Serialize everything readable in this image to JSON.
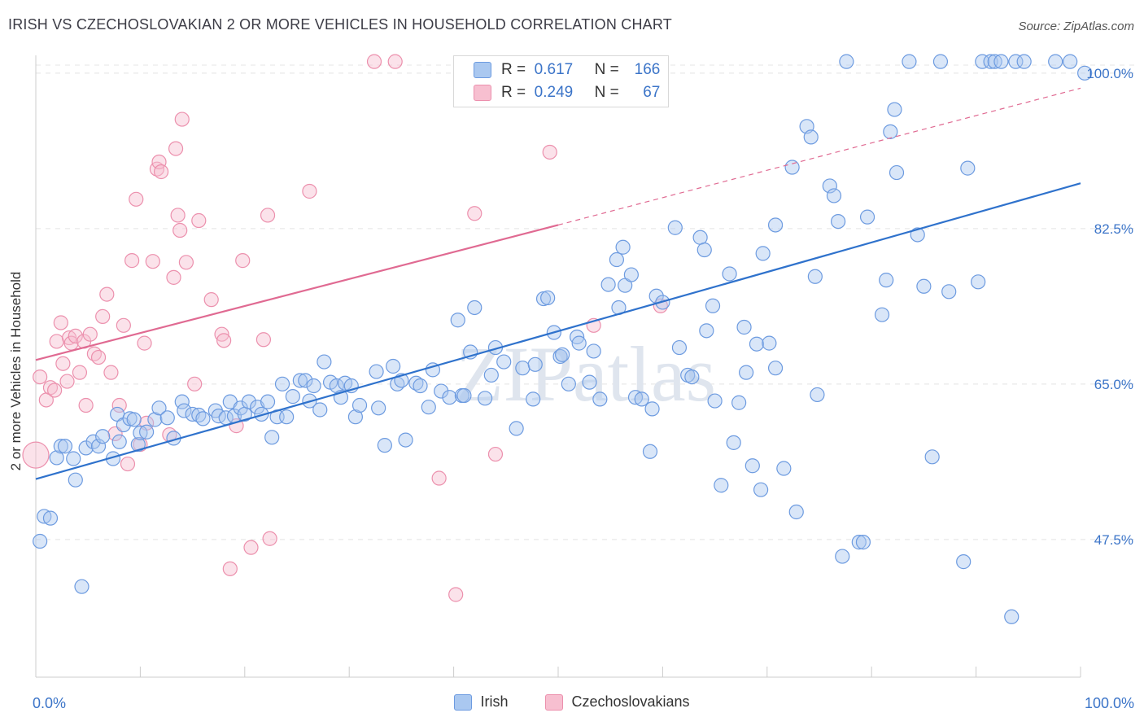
{
  "title": "IRISH VS CZECHOSLOVAKIAN 2 OR MORE VEHICLES IN HOUSEHOLD CORRELATION CHART",
  "source": "Source: ZipAtlas.com",
  "watermark": "ZIPatlas",
  "legend_top": {
    "irish": {
      "r_label": "R =",
      "r_value": "0.617",
      "n_label": "N =",
      "n_value": "166"
    },
    "czech": {
      "r_label": "R =",
      "r_value": "0.249",
      "n_label": "N =",
      "n_value": "67"
    }
  },
  "colors": {
    "irish_fill": "#aac8f0",
    "irish_stroke": "#6d9be0",
    "irish_line": "#2f72cc",
    "czech_fill": "#f7bfd0",
    "czech_stroke": "#ec90ad",
    "czech_line": "#e06a92",
    "tick_label": "#3b74c8",
    "grid": "#e4e4e4"
  },
  "chart_data": {
    "type": "scatter",
    "xlabel": "",
    "ylabel": "2 or more Vehicles in Household",
    "xlim": [
      0,
      100
    ],
    "ylim": [
      32,
      102
    ],
    "x_tick_labels": [
      {
        "value": 0,
        "label": "0.0%"
      },
      {
        "value": 100,
        "label": "100.0%"
      }
    ],
    "y_ticks": [
      {
        "value": 47.5,
        "label": "47.5%"
      },
      {
        "value": 65.0,
        "label": "65.0%"
      },
      {
        "value": 82.5,
        "label": "82.5%"
      },
      {
        "value": 100.0,
        "label": "100.0%"
      }
    ],
    "grid": true,
    "legend_position": "top-center",
    "series": [
      {
        "name": "Irish",
        "points": [
          [
            0.4,
            47.3
          ],
          [
            0.8,
            50.1
          ],
          [
            1.4,
            49.9
          ],
          [
            2,
            56.7
          ],
          [
            2.4,
            58
          ],
          [
            2.8,
            58
          ],
          [
            3.6,
            56.6
          ],
          [
            3.8,
            54.2
          ],
          [
            4.4,
            42.2
          ],
          [
            4.8,
            57.8
          ],
          [
            5.5,
            58.5
          ],
          [
            6,
            58
          ],
          [
            6.4,
            59.1
          ],
          [
            7.4,
            56.6
          ],
          [
            7.8,
            61.6
          ],
          [
            8,
            58.5
          ],
          [
            8.4,
            60.4
          ],
          [
            9,
            61.1
          ],
          [
            9.4,
            61
          ],
          [
            9.8,
            58.2
          ],
          [
            10,
            59.5
          ],
          [
            10.6,
            59.6
          ],
          [
            11.4,
            61
          ],
          [
            11.8,
            62.3
          ],
          [
            12.6,
            61.2
          ],
          [
            13.2,
            58.9
          ],
          [
            14,
            63
          ],
          [
            14.2,
            62
          ],
          [
            15,
            61.6
          ],
          [
            15.6,
            61.5
          ],
          [
            16,
            61.1
          ],
          [
            17.2,
            62
          ],
          [
            17.5,
            61.4
          ],
          [
            18.2,
            61.2
          ],
          [
            18.6,
            63
          ],
          [
            19,
            61.4
          ],
          [
            19.6,
            62.3
          ],
          [
            20,
            61.6
          ],
          [
            20.4,
            63
          ],
          [
            21.2,
            62.4
          ],
          [
            21.6,
            61.6
          ],
          [
            22.2,
            63
          ],
          [
            22.6,
            59
          ],
          [
            23.1,
            61.3
          ],
          [
            23.6,
            65
          ],
          [
            24,
            61.3
          ],
          [
            24.6,
            63.6
          ],
          [
            25.3,
            65.4
          ],
          [
            25.8,
            65.4
          ],
          [
            26.2,
            63.1
          ],
          [
            26.6,
            64.8
          ],
          [
            27.2,
            62.1
          ],
          [
            27.6,
            67.5
          ],
          [
            28.2,
            65.2
          ],
          [
            28.8,
            64.8
          ],
          [
            29.2,
            63.5
          ],
          [
            29.6,
            65.1
          ],
          [
            30.2,
            64.8
          ],
          [
            30.6,
            61.3
          ],
          [
            31,
            62.6
          ],
          [
            32.6,
            66.4
          ],
          [
            32.8,
            62.3
          ],
          [
            33.4,
            58.1
          ],
          [
            34.2,
            67
          ],
          [
            34.6,
            65
          ],
          [
            35,
            65.4
          ],
          [
            35.4,
            58.7
          ],
          [
            36.4,
            65.1
          ],
          [
            36.8,
            64.8
          ],
          [
            37.6,
            62.4
          ],
          [
            38,
            66.6
          ],
          [
            38.8,
            64.2
          ],
          [
            39.6,
            63.5
          ],
          [
            40.4,
            72.2
          ],
          [
            40.8,
            63.7
          ],
          [
            41,
            63.7
          ],
          [
            41.6,
            68.6
          ],
          [
            42,
            73.6
          ],
          [
            43,
            63.4
          ],
          [
            43.6,
            66
          ],
          [
            44,
            69.1
          ],
          [
            44.8,
            67.5
          ],
          [
            46,
            60
          ],
          [
            46.6,
            66.8
          ],
          [
            47.6,
            63.3
          ],
          [
            47.8,
            67.2
          ],
          [
            48.6,
            74.6
          ],
          [
            49,
            74.7
          ],
          [
            49.6,
            70.8
          ],
          [
            50.2,
            68.1
          ],
          [
            50.4,
            68.3
          ],
          [
            51,
            65
          ],
          [
            51.8,
            70.3
          ],
          [
            52,
            69.6
          ],
          [
            53,
            65.2
          ],
          [
            53.4,
            68.7
          ],
          [
            54,
            63.3
          ],
          [
            54.8,
            76.2
          ],
          [
            55.6,
            79
          ],
          [
            55.8,
            73.6
          ],
          [
            56.2,
            80.4
          ],
          [
            56.4,
            76.1
          ],
          [
            57,
            77.3
          ],
          [
            57.4,
            63.5
          ],
          [
            58,
            63.3
          ],
          [
            58.8,
            57.4
          ],
          [
            59,
            62.2
          ],
          [
            59.4,
            74.9
          ],
          [
            60,
            74.2
          ],
          [
            61.2,
            82.6
          ],
          [
            61.6,
            69.1
          ],
          [
            62.4,
            66
          ],
          [
            62.8,
            65.8
          ],
          [
            63.6,
            81.5
          ],
          [
            64,
            80.1
          ],
          [
            64.2,
            71
          ],
          [
            64.8,
            73.8
          ],
          [
            65,
            63.1
          ],
          [
            65.6,
            53.6
          ],
          [
            66.4,
            77.4
          ],
          [
            66.8,
            58.4
          ],
          [
            67.3,
            62.9
          ],
          [
            67.8,
            71.4
          ],
          [
            68,
            66.3
          ],
          [
            68.6,
            55.8
          ],
          [
            69,
            69.5
          ],
          [
            69.4,
            53.1
          ],
          [
            69.6,
            79.7
          ],
          [
            70.2,
            69.6
          ],
          [
            70.8,
            82.9
          ],
          [
            70.8,
            66.8
          ],
          [
            71.6,
            55.5
          ],
          [
            72.4,
            89.4
          ],
          [
            72.8,
            50.6
          ],
          [
            73.8,
            94
          ],
          [
            74.2,
            92.8
          ],
          [
            74.6,
            77.1
          ],
          [
            74.8,
            63.8
          ],
          [
            76,
            87.3
          ],
          [
            76.4,
            86.2
          ],
          [
            76.8,
            83.3
          ],
          [
            77.2,
            45.6
          ],
          [
            77.6,
            101.3
          ],
          [
            78.8,
            47.2
          ],
          [
            79.2,
            47.2
          ],
          [
            79.6,
            83.8
          ],
          [
            81,
            72.8
          ],
          [
            81.4,
            76.7
          ],
          [
            81.8,
            93.4
          ],
          [
            82.2,
            95.9
          ],
          [
            82.4,
            88.8
          ],
          [
            83.6,
            101.3
          ],
          [
            84.4,
            81.8
          ],
          [
            85,
            76
          ],
          [
            85.8,
            56.8
          ],
          [
            86.6,
            101.3
          ],
          [
            87.4,
            75.4
          ],
          [
            88.8,
            45
          ],
          [
            89.2,
            89.3
          ],
          [
            90.2,
            76.5
          ],
          [
            90.6,
            101.3
          ],
          [
            91.4,
            101.3
          ],
          [
            91.8,
            101.3
          ],
          [
            92.4,
            101.3
          ],
          [
            93.4,
            38.8
          ],
          [
            93.8,
            101.3
          ],
          [
            94.6,
            101.3
          ],
          [
            97.6,
            101.3
          ],
          [
            99,
            101.3
          ],
          [
            100.4,
            100
          ]
        ]
      },
      {
        "name": "Czechoslovakians",
        "points": [
          [
            0.4,
            65.8
          ],
          [
            1,
            63.2
          ],
          [
            1.4,
            64.6
          ],
          [
            1.8,
            64.3
          ],
          [
            2,
            69.8
          ],
          [
            2.4,
            71.9
          ],
          [
            2.6,
            67.3
          ],
          [
            3,
            65.3
          ],
          [
            3.2,
            70.2
          ],
          [
            3.4,
            69.6
          ],
          [
            3.8,
            70.4
          ],
          [
            4.2,
            66.3
          ],
          [
            4.6,
            69.8
          ],
          [
            4.8,
            62.6
          ],
          [
            5.2,
            70.6
          ],
          [
            5.6,
            68.4
          ],
          [
            6,
            68
          ],
          [
            6.4,
            72.6
          ],
          [
            6.8,
            75.1
          ],
          [
            7.2,
            66.3
          ],
          [
            7.6,
            59.4
          ],
          [
            8,
            62.6
          ],
          [
            8.4,
            71.6
          ],
          [
            8.8,
            56
          ],
          [
            9.2,
            78.9
          ],
          [
            9.6,
            85.8
          ],
          [
            10,
            58.2
          ],
          [
            10.4,
            69.6
          ],
          [
            10.6,
            60.6
          ],
          [
            11.2,
            78.8
          ],
          [
            11.6,
            89.2
          ],
          [
            11.8,
            90
          ],
          [
            12,
            88.9
          ],
          [
            12.8,
            59.3
          ],
          [
            13.2,
            77
          ],
          [
            13.4,
            91.5
          ],
          [
            13.6,
            84
          ],
          [
            13.8,
            82.3
          ],
          [
            14,
            94.8
          ],
          [
            14.4,
            78.7
          ],
          [
            15.2,
            65
          ],
          [
            15.6,
            83.4
          ],
          [
            16.8,
            74.5
          ],
          [
            17.8,
            70.6
          ],
          [
            18,
            69.9
          ],
          [
            18.6,
            44.2
          ],
          [
            19.2,
            60.3
          ],
          [
            19.8,
            78.9
          ],
          [
            20.6,
            46.6
          ],
          [
            21.8,
            70
          ],
          [
            22.2,
            84
          ],
          [
            22.4,
            47.6
          ],
          [
            26.2,
            86.7
          ],
          [
            32.4,
            101.3
          ],
          [
            34.4,
            101.3
          ],
          [
            38.6,
            54.4
          ],
          [
            40.2,
            41.3
          ],
          [
            42,
            84.2
          ],
          [
            44,
            57.1
          ],
          [
            49.2,
            91.1
          ],
          [
            53.4,
            71.6
          ],
          [
            59.8,
            73.8
          ]
        ]
      }
    ],
    "trend_lines": [
      {
        "series": "Irish",
        "x": [
          0,
          100
        ],
        "y": [
          54.3,
          87.6
        ],
        "style": "solid"
      },
      {
        "series": "Czechoslovakians",
        "x": [
          0,
          50
        ],
        "y": [
          67.7,
          82.9
        ],
        "style": "solid"
      },
      {
        "series": "Czechoslovakians",
        "x": [
          50,
          100
        ],
        "y": [
          82.9,
          98.3
        ],
        "style": "dashed"
      }
    ]
  },
  "legend_bottom": [
    {
      "label": "Irish"
    },
    {
      "label": "Czechoslovakians"
    }
  ]
}
